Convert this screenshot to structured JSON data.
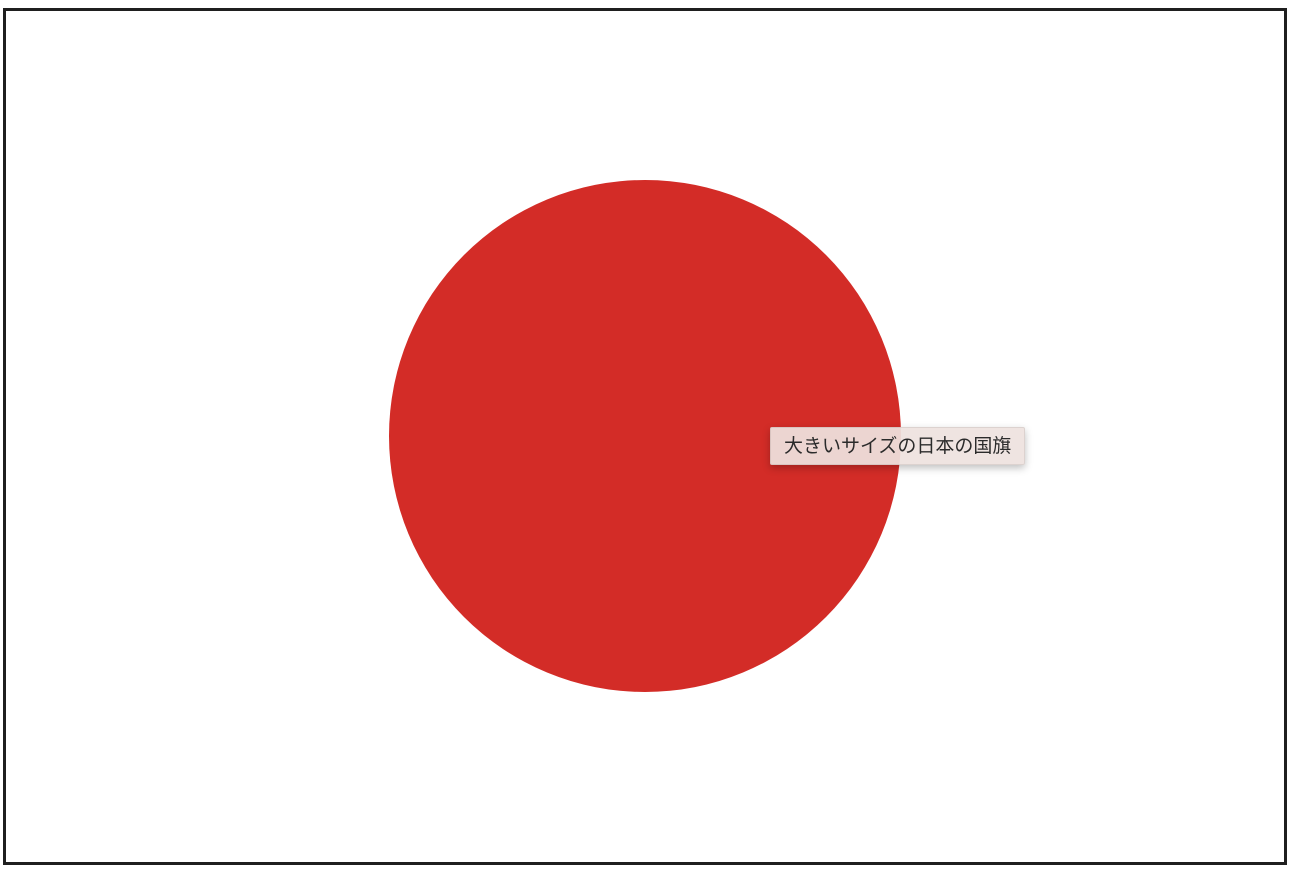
{
  "image": {
    "description_icon": "japan-flag-icon",
    "colors": {
      "field": "#ffffff",
      "disc": "#d32c27",
      "border": "#1f1f1f"
    }
  },
  "tooltip": {
    "text": "大きいサイズの日本の国旗"
  }
}
